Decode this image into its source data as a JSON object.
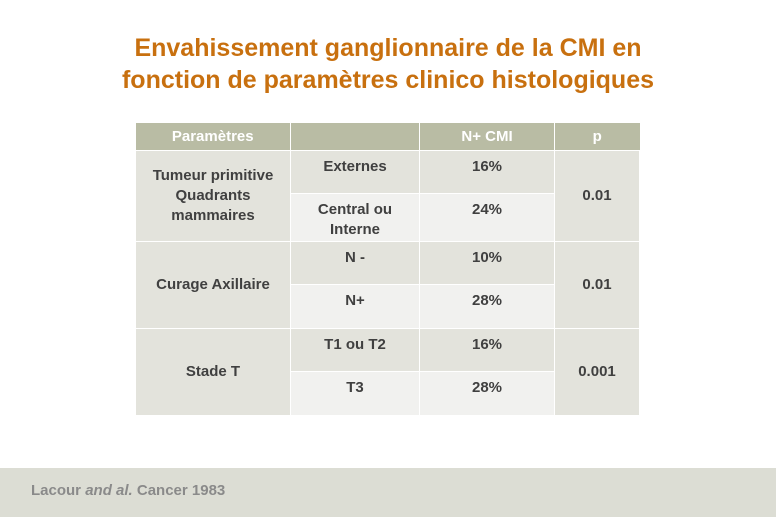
{
  "title": {
    "line1": "Envahissement ganglionnaire de la CMI en",
    "line2": "fonction de paramètres clinico histologiques"
  },
  "table": {
    "headers": [
      "Paramètres",
      "",
      "N+ CMI",
      "p"
    ],
    "groups": [
      {
        "parameter": [
          "Tumeur primitive",
          "Quadrants",
          "mammaires"
        ],
        "p": "0.01",
        "rows": [
          {
            "sub": [
              "Externes"
            ],
            "value": "16%"
          },
          {
            "sub": [
              "Central ou",
              "Interne"
            ],
            "value": "24%"
          }
        ]
      },
      {
        "parameter": [
          "Curage Axillaire"
        ],
        "p": "0.01",
        "rows": [
          {
            "sub": [
              "N -"
            ],
            "value": "10%"
          },
          {
            "sub": [
              "N+"
            ],
            "value": "28%"
          }
        ]
      },
      {
        "parameter": [
          "Stade T"
        ],
        "p": "0.001",
        "rows": [
          {
            "sub": [
              "T1 ou T2"
            ],
            "value": "16%"
          },
          {
            "sub": [
              "T3"
            ],
            "value": "28%"
          }
        ]
      }
    ]
  },
  "footer": {
    "author": "Lacour",
    "etal": "and al.",
    "source": "Cancer 1983"
  },
  "colors": {
    "title": "#c8700f",
    "header_bg": "#b9bca4",
    "row_dark": "#e3e3dc",
    "row_light": "#f1f1ef",
    "footer_bg": "#dcddd4"
  }
}
